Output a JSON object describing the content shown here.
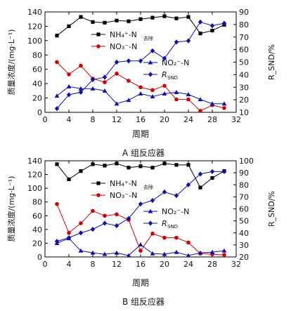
{
  "chart_data": [
    {
      "type": "line",
      "title": "A 组反应器",
      "xlabel": "周期",
      "ylabel_left": "质量浓度/(mg·L⁻¹)",
      "ylabel_right": "R_SND/%",
      "xlim": [
        0,
        32
      ],
      "ylim_left": [
        0,
        140
      ],
      "ylim_right": [
        10,
        90
      ],
      "x_ticks": [
        0,
        4,
        8,
        12,
        16,
        20,
        24,
        28,
        32
      ],
      "y_ticks_left": [
        0,
        20,
        40,
        60,
        80,
        100,
        120,
        140
      ],
      "y_ticks_right": [
        10,
        20,
        30,
        40,
        50,
        60,
        70,
        80,
        90
      ],
      "x": [
        2,
        4,
        6,
        8,
        10,
        12,
        14,
        16,
        18,
        20,
        22,
        24,
        26,
        28,
        30
      ],
      "series": [
        {
          "name": "NH₄⁺-N去除",
          "axis": "left",
          "marker": "square",
          "color": "#000000",
          "values": [
            107,
            120,
            133,
            126,
            125,
            128,
            127,
            130,
            132,
            134,
            131,
            133,
            110,
            114,
            122
          ]
        },
        {
          "name": "NO₃⁻-N",
          "axis": "left",
          "marker": "circle",
          "color": "#d40000",
          "values": [
            70,
            53,
            65,
            47,
            42,
            54,
            44,
            35,
            31,
            37,
            18,
            18,
            2,
            10,
            6
          ]
        },
        {
          "name": "NO₂⁻-N",
          "axis": "left",
          "marker": "triangle",
          "color": "#1010b0",
          "values": [
            23,
            36,
            33,
            33,
            30,
            12,
            17,
            26,
            22,
            26,
            28,
            25,
            18,
            12,
            12
          ]
        },
        {
          "name": "R_SND",
          "axis": "right",
          "marker": "diamond",
          "color": "#1010b0",
          "values": [
            13,
            24,
            26,
            36,
            38,
            50,
            51,
            51,
            59,
            53,
            66,
            67,
            82,
            79,
            81
          ]
        }
      ],
      "legend_left": [
        "NH₄⁺-N",
        "NO₃⁻-N"
      ],
      "legend_left_sub": "去除",
      "legend_right": [
        "NO₂⁻-N",
        "R"
      ],
      "legend_right_sub": "SND"
    },
    {
      "type": "line",
      "title": "B 组反应器",
      "xlabel": "周期",
      "ylabel_left": "质量浓度/(mg·L⁻¹)",
      "ylabel_right": "R_SND/%",
      "xlim": [
        0,
        32
      ],
      "ylim_left": [
        0,
        140
      ],
      "ylim_right": [
        20,
        100
      ],
      "x_ticks": [
        0,
        4,
        8,
        12,
        16,
        20,
        24,
        28,
        32
      ],
      "y_ticks_left": [
        0,
        20,
        40,
        60,
        80,
        100,
        120,
        140
      ],
      "y_ticks_right": [
        20,
        30,
        40,
        50,
        60,
        70,
        80,
        90,
        100
      ],
      "x": [
        2,
        4,
        6,
        8,
        10,
        12,
        14,
        16,
        18,
        20,
        22,
        24,
        26,
        28,
        30
      ],
      "series": [
        {
          "name": "NH₄⁺-N去除",
          "axis": "left",
          "marker": "square",
          "color": "#000000",
          "values": [
            135,
            113,
            125,
            135,
            133,
            136,
            130,
            132,
            130,
            136,
            134,
            134,
            101,
            115,
            125
          ]
        },
        {
          "name": "NO₃⁻-N",
          "axis": "left",
          "marker": "circle",
          "color": "#d40000",
          "values": [
            77,
            35,
            49,
            67,
            60,
            62,
            54,
            9,
            34,
            28,
            28,
            21,
            5,
            4,
            3
          ]
        },
        {
          "name": "NO₂⁻-N",
          "axis": "left",
          "marker": "triangle",
          "color": "#1010b0",
          "values": [
            20,
            27,
            9,
            6,
            4,
            6,
            2,
            18,
            5,
            4,
            7,
            2,
            6,
            7,
            9
          ]
        },
        {
          "name": "R_SND",
          "axis": "right",
          "marker": "diamond",
          "color": "#1010b0",
          "values": [
            33,
            36,
            40,
            43,
            48,
            46,
            52,
            64,
            67,
            74,
            71,
            80,
            89,
            91,
            91
          ]
        }
      ],
      "legend_left": [
        "NH₄⁺-N",
        "NO₃⁻-N"
      ],
      "legend_left_sub": "去除",
      "legend_right": [
        "NO₂⁻-N",
        "R"
      ],
      "legend_right_sub": "SND"
    }
  ]
}
